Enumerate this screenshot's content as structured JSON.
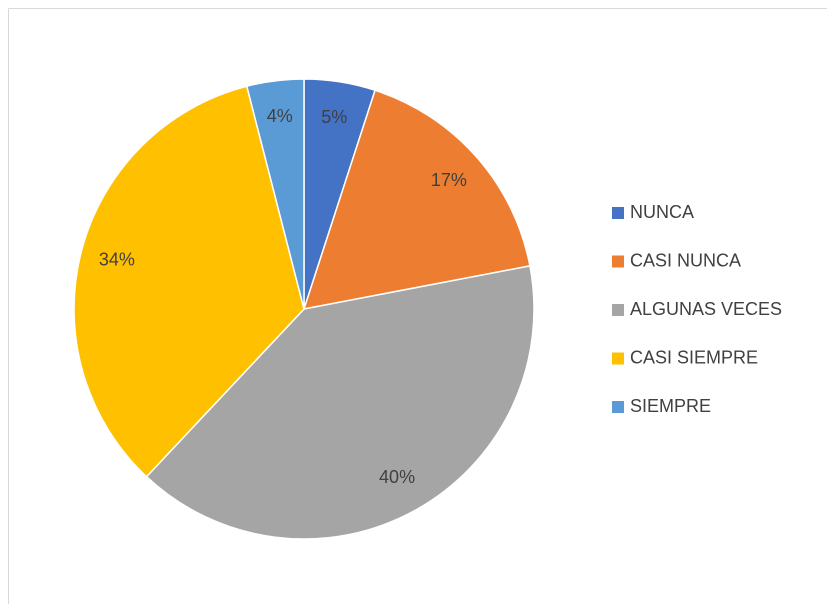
{
  "chart_data": {
    "type": "pie",
    "categories": [
      "NUNCA",
      "CASI NUNCA",
      "ALGUNAS VECES",
      "CASI SIEMPRE",
      "SIEMPRE"
    ],
    "values": [
      5,
      17,
      40,
      34,
      4
    ],
    "value_labels": [
      "5%",
      "17%",
      "40%",
      "34%",
      "4%"
    ],
    "colors": [
      "#4472c4",
      "#ed7d31",
      "#a5a5a5",
      "#ffc000",
      "#5b9bd5"
    ],
    "legend": "right"
  }
}
